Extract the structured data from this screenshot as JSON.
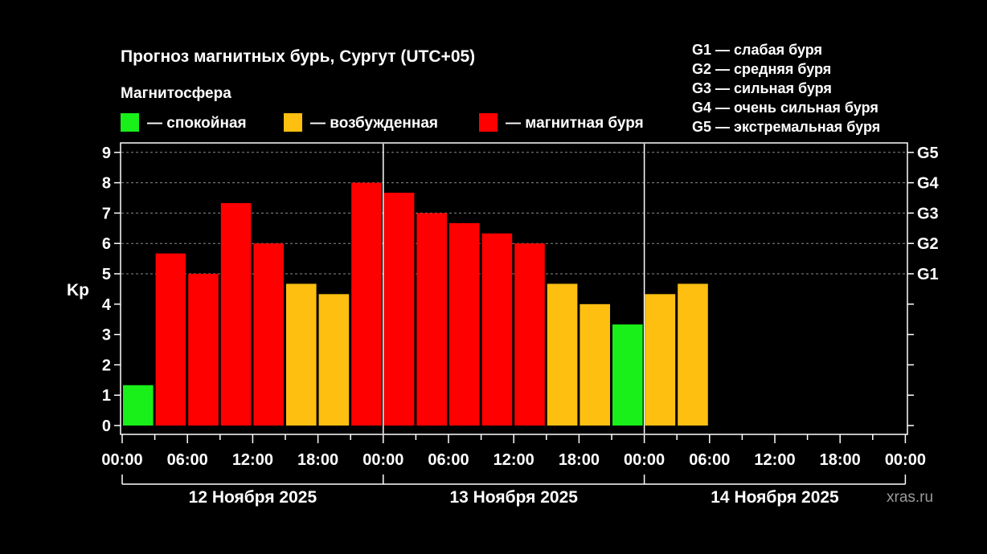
{
  "chart_data": {
    "type": "bar",
    "title": "Прогноз магнитных бурь, Сургут (UTC+05)",
    "ylabel": "Kp",
    "ylim": [
      0,
      9
    ],
    "y_ticks": [
      "0",
      "1",
      "2",
      "3",
      "4",
      "5",
      "6",
      "7",
      "8",
      "9"
    ],
    "grid": "dashed horizontal at Kp 5-9",
    "legend_title": "Магнитосфера",
    "legend": [
      {
        "key": "quiet",
        "label": "— спокойная",
        "color": "#19f019"
      },
      {
        "key": "excited",
        "label": "— возбужденная",
        "color": "#ffbf10"
      },
      {
        "key": "storm",
        "label": "— магнитная буря",
        "color": "#ff0000"
      }
    ],
    "storm_levels": [
      {
        "label": "G1 — слабая буря"
      },
      {
        "label": "G2 — средняя буря"
      },
      {
        "label": "G3 — сильная буря"
      },
      {
        "label": "G4 — очень сильная буря"
      },
      {
        "label": "G5 — экстремальная буря"
      }
    ],
    "right_axis": [
      {
        "label": "G1",
        "kp": 5
      },
      {
        "label": "G2",
        "kp": 6
      },
      {
        "label": "G3",
        "kp": 7
      },
      {
        "label": "G4",
        "kp": 8
      },
      {
        "label": "G5",
        "kp": 9
      }
    ],
    "x_tick_labels": [
      "00:00",
      "06:00",
      "12:00",
      "18:00",
      "00:00",
      "06:00",
      "12:00",
      "18:00",
      "00:00",
      "06:00",
      "12:00",
      "18:00",
      "00:00"
    ],
    "days": [
      "12 Ноября 2025",
      "13 Ноября 2025",
      "14 Ноября 2025"
    ],
    "series": [
      {
        "values": [
          1.33,
          5.67,
          5.0,
          7.33,
          6.0,
          4.67,
          4.33,
          8.0,
          7.67,
          7.0,
          6.67,
          6.33,
          6.0,
          4.67,
          4.0,
          3.33,
          4.33,
          4.67
        ],
        "levels": [
          "quiet",
          "storm",
          "storm",
          "storm",
          "storm",
          "excited",
          "excited",
          "storm",
          "storm",
          "storm",
          "storm",
          "storm",
          "storm",
          "excited",
          "excited",
          "quiet",
          "excited",
          "excited"
        ]
      }
    ]
  },
  "watermark": "xras.ru"
}
